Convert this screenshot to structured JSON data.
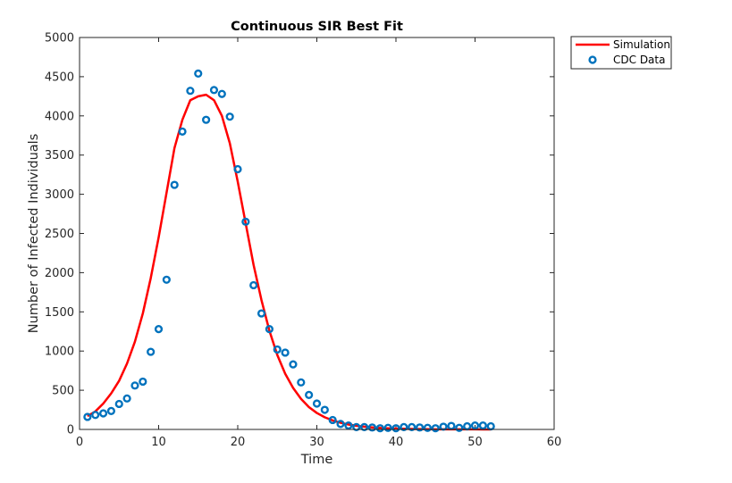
{
  "chart_data": {
    "type": "line",
    "title": "Continuous SIR Best Fit",
    "xlabel": "Time",
    "ylabel": "Number of Infected Individuals",
    "xlim": [
      0,
      60
    ],
    "ylim": [
      0,
      5000
    ],
    "xticks": [
      0,
      10,
      20,
      30,
      40,
      50,
      60
    ],
    "yticks": [
      0,
      500,
      1000,
      1500,
      2000,
      2500,
      3000,
      3500,
      4000,
      4500,
      5000
    ],
    "grid": false,
    "legend_position": "outside-top-right",
    "series": [
      {
        "name": "Simulation",
        "kind": "line",
        "color": "#ff0000",
        "x": [
          1,
          2,
          3,
          4,
          5,
          6,
          7,
          8,
          9,
          10,
          11,
          12,
          13,
          14,
          15,
          16,
          17,
          18,
          19,
          20,
          21,
          22,
          23,
          24,
          25,
          26,
          27,
          28,
          29,
          30,
          31,
          32,
          33,
          34,
          35,
          36,
          37,
          38,
          39,
          40,
          41,
          42,
          43,
          44,
          45,
          46,
          47,
          48,
          49,
          50,
          51,
          52
        ],
        "values": [
          170,
          230,
          330,
          460,
          620,
          840,
          1120,
          1480,
          1930,
          2450,
          3020,
          3590,
          3950,
          4200,
          4250,
          4270,
          4200,
          4000,
          3650,
          3160,
          2630,
          2100,
          1650,
          1260,
          950,
          710,
          530,
          390,
          285,
          210,
          155,
          115,
          85,
          63,
          47,
          35,
          26,
          19,
          14,
          10,
          8,
          6,
          4,
          3,
          2,
          2,
          1,
          1,
          1,
          1,
          0,
          0
        ]
      },
      {
        "name": "CDC Data",
        "kind": "scatter",
        "color": "#0072bd",
        "x": [
          1,
          2,
          3,
          4,
          5,
          6,
          7,
          8,
          9,
          10,
          11,
          12,
          13,
          14,
          15,
          16,
          17,
          18,
          19,
          20,
          21,
          22,
          23,
          24,
          25,
          26,
          27,
          28,
          29,
          30,
          31,
          32,
          33,
          34,
          35,
          36,
          37,
          38,
          39,
          40,
          41,
          42,
          43,
          44,
          45,
          46,
          47,
          48,
          49,
          50,
          51,
          52
        ],
        "values": [
          160,
          185,
          205,
          235,
          325,
          395,
          560,
          610,
          990,
          1280,
          1910,
          3120,
          3800,
          4320,
          4540,
          3950,
          4330,
          4280,
          3990,
          3320,
          2650,
          1840,
          1480,
          1280,
          1020,
          980,
          830,
          600,
          440,
          330,
          250,
          120,
          70,
          50,
          30,
          30,
          25,
          15,
          20,
          15,
          30,
          30,
          25,
          20,
          15,
          35,
          45,
          20,
          40,
          50,
          50,
          40
        ]
      }
    ]
  }
}
